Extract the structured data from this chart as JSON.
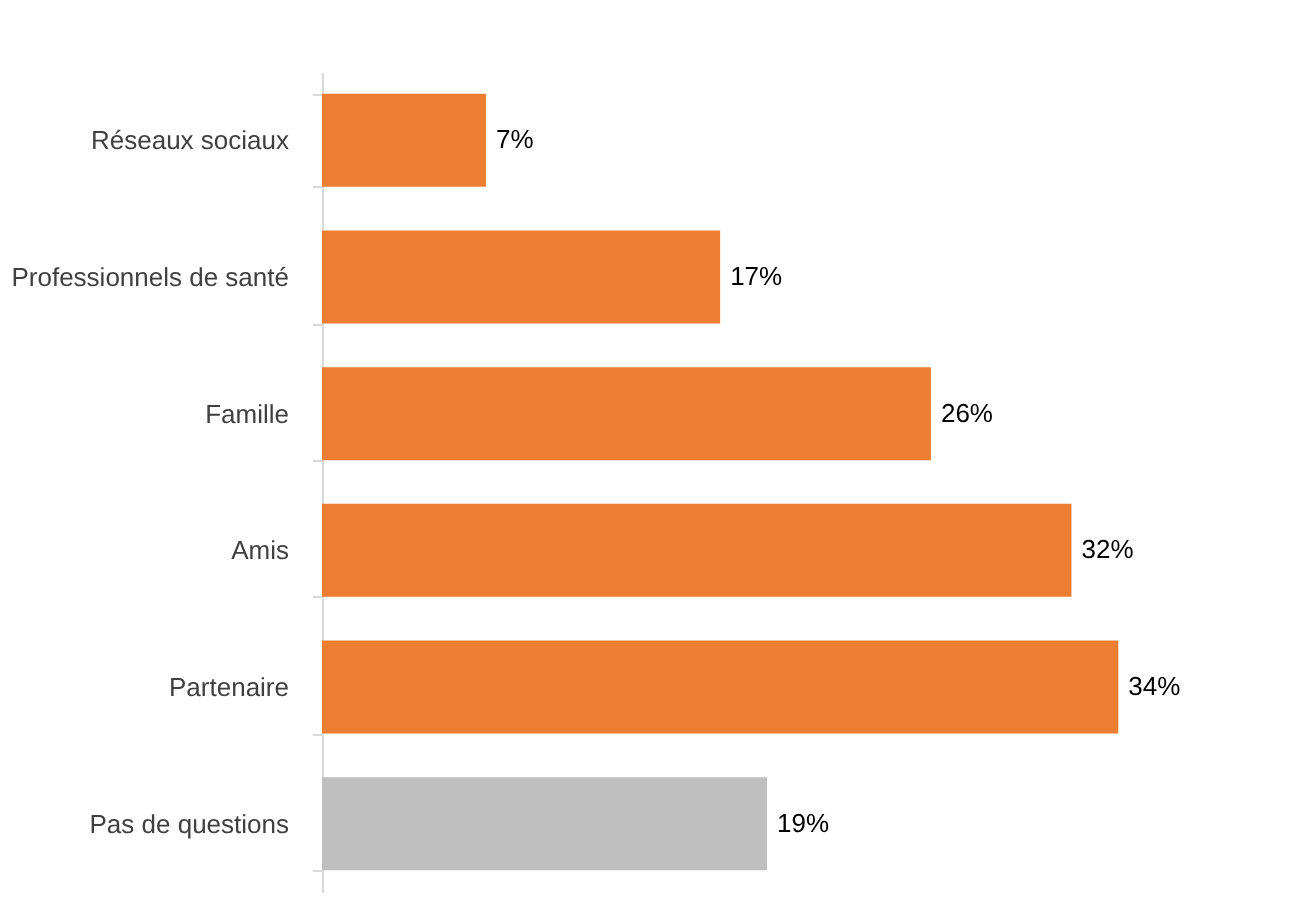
{
  "chart_data": {
    "type": "bar",
    "orientation": "horizontal",
    "categories": [
      "Réseaux sociaux",
      "Professionnels de santé",
      "Famille",
      "Amis",
      "Partenaire",
      "Pas de questions"
    ],
    "values": [
      7,
      17,
      26,
      32,
      34,
      19
    ],
    "value_labels": [
      "7%",
      "17%",
      "26%",
      "32%",
      "34%",
      "19%"
    ],
    "colors": [
      "#ed7d31",
      "#ed7d31",
      "#ed7d31",
      "#ed7d31",
      "#ed7d31",
      "#bfbfbf"
    ],
    "grid": false
  }
}
